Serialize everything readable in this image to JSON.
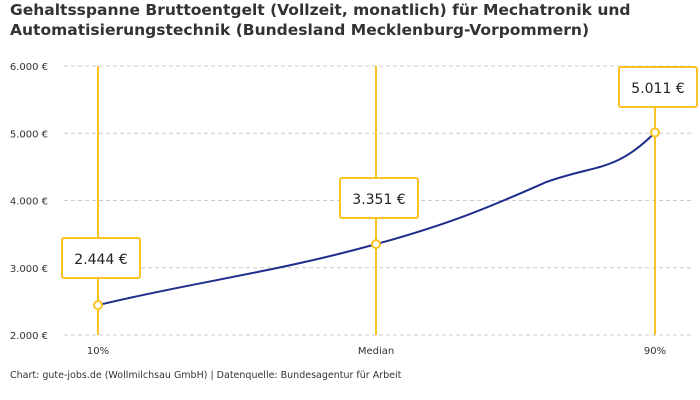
{
  "chart_data": {
    "type": "line",
    "title": "Gehaltsspanne Bruttoentgelt (Vollzeit, monatlich) für Mechatronik und Automatisierungstechnik (Bundesland Mecklenburg-Vorpommern)",
    "categories": [
      "10%",
      "Median",
      "90%"
    ],
    "values": [
      2444,
      3351,
      5011
    ],
    "value_labels": [
      "2.444 €",
      "3.351 €",
      "5.011 €"
    ],
    "ylim": [
      2000,
      6000
    ],
    "yticks": [
      2000,
      3000,
      4000,
      5000,
      6000
    ],
    "ytick_labels": [
      "2.000 €",
      "3.000 €",
      "4.000 €",
      "5.000 €",
      "6.000 €"
    ],
    "grid": true,
    "colors": {
      "line": "#1f2d8c",
      "marker": "#f7c325",
      "grid": "#cccccc"
    }
  },
  "footer": "Chart: gute-jobs.de (Wollmilchsau GmbH) | Datenquelle: Bundesagentur für Arbeit"
}
